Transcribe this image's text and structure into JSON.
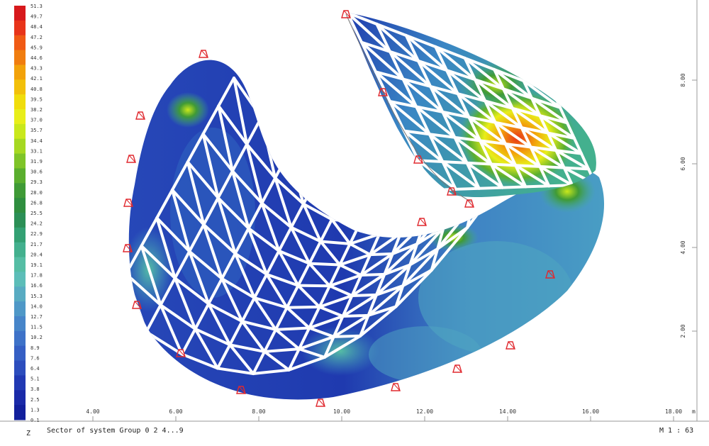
{
  "legend": {
    "top_value": "51.3",
    "values": [
      "49.7",
      "48.4",
      "47.2",
      "45.9",
      "44.6",
      "43.3",
      "42.1",
      "40.8",
      "39.5",
      "38.2",
      "37.0",
      "35.7",
      "34.4",
      "33.1",
      "31.9",
      "30.6",
      "29.3",
      "28.0",
      "26.8",
      "25.5",
      "24.2",
      "22.9",
      "21.7",
      "20.4",
      "19.1",
      "17.8",
      "16.6",
      "15.3",
      "14.0",
      "12.7",
      "11.5",
      "10.2",
      "8.9",
      "7.6",
      "6.4",
      "5.1",
      "3.8",
      "2.5",
      "1.3"
    ],
    "bottom_value": "0.1",
    "colors": [
      "#d7191c",
      "#e8341a",
      "#f05a14",
      "#f07d0f",
      "#f2a20a",
      "#f2c00a",
      "#f0dd0c",
      "#e8ee1a",
      "#c9e81c",
      "#a6d821",
      "#7fc428",
      "#5aae2e",
      "#3f9a36",
      "#2f8e3f",
      "#2b8f56",
      "#33a073",
      "#43b08e",
      "#55bda4",
      "#5cbdb8",
      "#58abc2",
      "#4f98c7",
      "#4785c9",
      "#3e72c8",
      "#355fc4",
      "#2c4dbd",
      "#2139b3",
      "#1a2aa8",
      "#12209c"
    ]
  },
  "axes": {
    "x_ticks": [
      "4.00",
      "6.00",
      "8.00",
      "10.00",
      "12.00",
      "14.00",
      "16.00",
      "18.00"
    ],
    "x_unit": "m",
    "y_ticks": [
      "8.00",
      "6.00",
      "4.00",
      "2.00"
    ]
  },
  "footer": {
    "z_label": "Z",
    "caption": "Sector of system Group 0 2 4...9",
    "scale": "M 1 : 63"
  },
  "colors": {
    "low": "#1f3fb0",
    "mid": "#45a3c2",
    "high": "#e2352a",
    "grid": "#ffffff",
    "support": "#e0282e"
  }
}
